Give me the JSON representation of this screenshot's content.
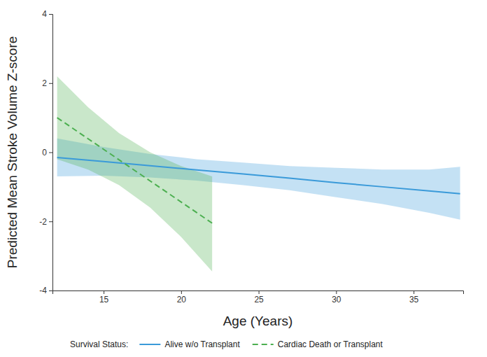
{
  "chart_data": {
    "type": "line",
    "x_label": "Age (Years)",
    "y_label": "Predicted Mean Stroke Volume Z-score",
    "legend_title": "Survival Status:",
    "legend": "bottom",
    "grid": false,
    "xlim": [
      11.7,
      38.2
    ],
    "ylim": [
      -4,
      4
    ],
    "xticks": [
      15,
      20,
      25,
      30,
      35
    ],
    "yticks": [
      -4,
      -2,
      0,
      2,
      4
    ],
    "series": [
      {
        "name": "Alive w/o Transplant",
        "color": "#3a9ad9",
        "line_style": "solid",
        "x": [
          12,
          15,
          18,
          21,
          24,
          27,
          30,
          33,
          36,
          38
        ],
        "values": [
          -0.15,
          -0.27,
          -0.39,
          -0.51,
          -0.63,
          -0.75,
          -0.88,
          -1.0,
          -1.12,
          -1.2
        ],
        "lower": [
          -0.7,
          -0.68,
          -0.73,
          -0.82,
          -0.95,
          -1.1,
          -1.3,
          -1.5,
          -1.75,
          -1.95
        ],
        "upper": [
          0.4,
          0.15,
          -0.05,
          -0.2,
          -0.3,
          -0.4,
          -0.45,
          -0.5,
          -0.5,
          -0.42
        ]
      },
      {
        "name": "Cardiac Death or Transplant",
        "color": "#4caf50",
        "line_style": "dashed",
        "x": [
          12,
          14,
          16,
          18,
          20,
          22
        ],
        "values": [
          1.0,
          0.39,
          -0.22,
          -0.83,
          -1.44,
          -2.05
        ],
        "lower": [
          -0.2,
          -0.5,
          -0.95,
          -1.6,
          -2.45,
          -3.45
        ],
        "upper": [
          2.2,
          1.3,
          0.55,
          0.0,
          -0.4,
          -0.7
        ]
      }
    ]
  }
}
